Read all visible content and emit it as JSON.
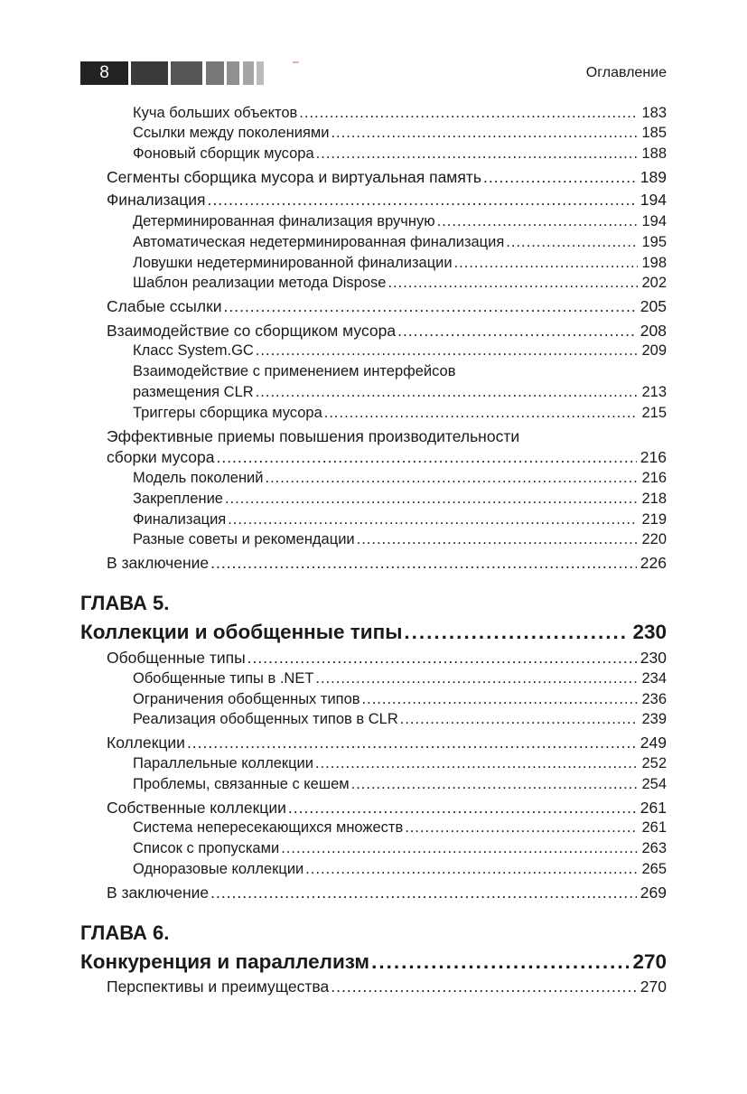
{
  "header": {
    "page_number": "8",
    "running_title": "Оглавление"
  },
  "entries_top": [
    {
      "level": 2,
      "text": "Куча больших объектов",
      "page": "183"
    },
    {
      "level": 2,
      "text": "Ссылки между поколениями",
      "page": "185"
    },
    {
      "level": 2,
      "text": "Фоновый сборщик мусора",
      "page": "188"
    },
    {
      "level": 1,
      "text": "Сегменты сборщика мусора и виртуальная память",
      "page": "189"
    },
    {
      "level": 1,
      "text": "Финализация",
      "page": "194"
    },
    {
      "level": 2,
      "text": "Детерминированная финализация вручную",
      "page": "194"
    },
    {
      "level": 2,
      "text": "Автоматическая недетерминированная финализация",
      "page": "195"
    },
    {
      "level": 2,
      "text": "Ловушки недетерминированной финализации",
      "page": "198"
    },
    {
      "level": 2,
      "text": "Шаблон реализации метода Dispose",
      "page": "202"
    },
    {
      "level": 1,
      "text": "Слабые ссылки",
      "page": "205"
    },
    {
      "level": 1,
      "text": "Взаимодействие со сборщиком мусора",
      "page": "208"
    },
    {
      "level": 2,
      "text": "Класс System.GC",
      "page": "209"
    },
    {
      "level": 2,
      "first": "Взаимодействие с применением интерфейсов",
      "text": "размещения CLR",
      "page": "213"
    },
    {
      "level": 2,
      "text": "Триггеры сборщика мусора",
      "page": "215"
    },
    {
      "level": 1,
      "first": "Эффективные приемы повышения производительности",
      "text": "сборки мусора",
      "page": "216"
    },
    {
      "level": 2,
      "text": "Модель поколений",
      "page": "216"
    },
    {
      "level": 2,
      "text": "Закрепление",
      "page": "218"
    },
    {
      "level": 2,
      "text": "Финализация",
      "page": "219"
    },
    {
      "level": 2,
      "text": "Разные советы и рекомендации",
      "page": "220"
    },
    {
      "level": 1,
      "text": "В заключение",
      "page": "226"
    }
  ],
  "chapter5": {
    "label": "ГЛАВА 5.",
    "title": "Коллекции и обобщенные типы",
    "page": "230",
    "entries": [
      {
        "level": 1,
        "text": "Обобщенные типы",
        "page": "230"
      },
      {
        "level": 2,
        "text": "Обобщенные типы в .NET",
        "page": "234"
      },
      {
        "level": 2,
        "text": "Ограничения обобщенных типов",
        "page": "236"
      },
      {
        "level": 2,
        "text": "Реализация обобщенных типов в CLR",
        "page": "239"
      },
      {
        "level": 1,
        "text": "Коллекции",
        "page": "249"
      },
      {
        "level": 2,
        "text": "Параллельные коллекции",
        "page": "252"
      },
      {
        "level": 2,
        "text": "Проблемы, связанные с кешем",
        "page": "254"
      },
      {
        "level": 1,
        "text": "Собственные коллекции",
        "page": "261"
      },
      {
        "level": 2,
        "text": "Система непересекающихся множеств",
        "page": "261"
      },
      {
        "level": 2,
        "text": "Список с пропусками",
        "page": "263"
      },
      {
        "level": 2,
        "text": "Одноразовые коллекции",
        "page": "265"
      },
      {
        "level": 1,
        "text": "В заключение",
        "page": "269"
      }
    ]
  },
  "chapter6": {
    "label": "ГЛАВА 6.",
    "title": "Конкуренция и параллелизм",
    "page": "270",
    "entries": [
      {
        "level": 1,
        "text": "Перспективы и преимущества",
        "page": "270"
      }
    ]
  }
}
